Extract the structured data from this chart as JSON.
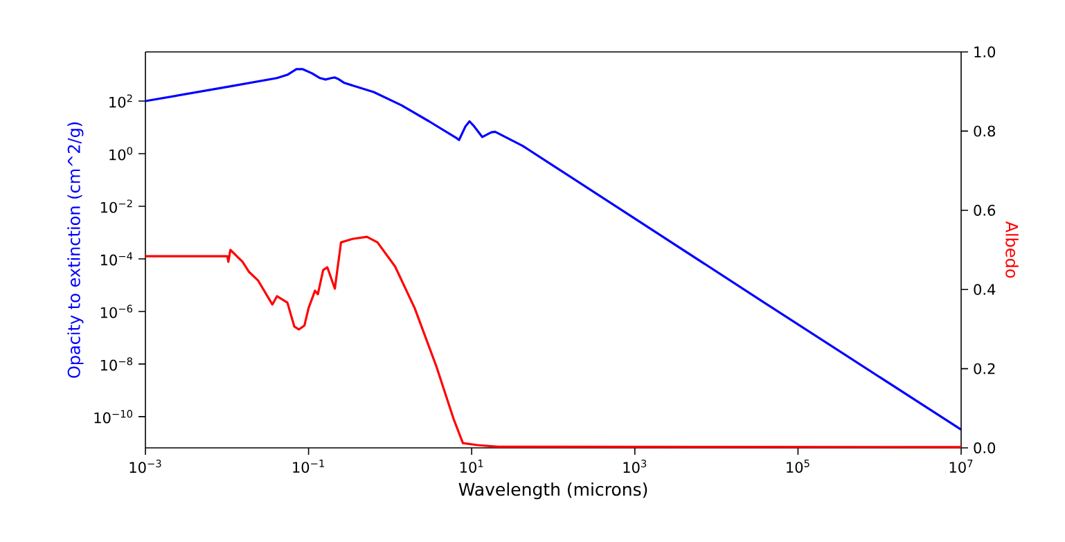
{
  "chart_data": {
    "type": "line",
    "xlabel": "Wavelength (microns)",
    "ylabel": "Opacity to extinction (cm^2/g)",
    "y2label": "Albedo",
    "log": "xy",
    "xlim": [
      0.001,
      10000000
    ],
    "ylim": [
      6.5e-12,
      7400
    ],
    "y2lim": [
      0,
      1
    ],
    "xticks": [
      {
        "value": 0.001,
        "label": "10$^{−3}$"
      },
      {
        "value": 0.1,
        "label": "10$^{−1}$"
      },
      {
        "value": 10,
        "label": "10$^{1}$"
      },
      {
        "value": 1000,
        "label": "10$^{3}$"
      },
      {
        "value": 100000,
        "label": "10$^{5}$"
      },
      {
        "value": 10000000,
        "label": "10$^{7}$"
      }
    ],
    "yticks": [
      {
        "value": 1e-10,
        "label": "10$^{−10}$"
      },
      {
        "value": 1e-08,
        "label": "10$^{−8}$"
      },
      {
        "value": 1e-06,
        "label": "10$^{−6}$"
      },
      {
        "value": 0.0001,
        "label": "10$^{−4}$"
      },
      {
        "value": 0.01,
        "label": "10$^{−2}$"
      },
      {
        "value": 1,
        "label": "10$^{0}$"
      },
      {
        "value": 100,
        "label": "10$^{2}$"
      }
    ],
    "y2ticks": [
      {
        "value": 0,
        "label": "0.0"
      },
      0.2,
      0.4,
      0.6,
      0.8,
      {
        "value": 1,
        "label": "1.0"
      }
    ],
    "series": [
      {
        "color": "#0000ff",
        "x": [
          0.001,
          0.0105,
          0.041,
          0.055,
          0.071,
          0.085,
          0.11,
          0.138,
          0.162,
          0.19,
          0.21,
          0.23,
          0.275,
          0.63,
          1.38,
          3.0,
          6.6,
          7.0,
          8.4,
          9.4,
          10.7,
          13.5,
          17.4,
          19.4,
          42,
          103,
          36000,
          10000000
        ],
        "values": [
          100,
          355,
          750,
          1000,
          1630,
          1630,
          1140,
          750,
          660,
          750,
          790,
          700,
          490,
          220,
          69,
          17,
          3.8,
          3.3,
          11,
          17,
          11,
          4.3,
          6.5,
          6.8,
          2.0,
          0.33,
          2.5e-06,
          3.2e-11
        ]
      },
      {
        "color": "#ff0000",
        "axis": "y2",
        "x": [
          0.001,
          0.0101,
          0.0104,
          0.011,
          0.0155,
          0.0187,
          0.024,
          0.036,
          0.041,
          0.055,
          0.067,
          0.076,
          0.089,
          0.1,
          0.12,
          0.13,
          0.151,
          0.17,
          0.21,
          0.25,
          0.35,
          0.52,
          0.7,
          1.15,
          2.0,
          3.7,
          6.0,
          7.8,
          11.8,
          21,
          10000000
        ],
        "values": [
          0.484,
          0.484,
          0.47,
          0.5,
          0.47,
          0.444,
          0.423,
          0.362,
          0.383,
          0.367,
          0.306,
          0.299,
          0.309,
          0.353,
          0.397,
          0.388,
          0.449,
          0.456,
          0.402,
          0.519,
          0.528,
          0.533,
          0.519,
          0.458,
          0.353,
          0.205,
          0.073,
          0.012,
          0.007,
          0.003,
          0.002
        ]
      }
    ]
  }
}
